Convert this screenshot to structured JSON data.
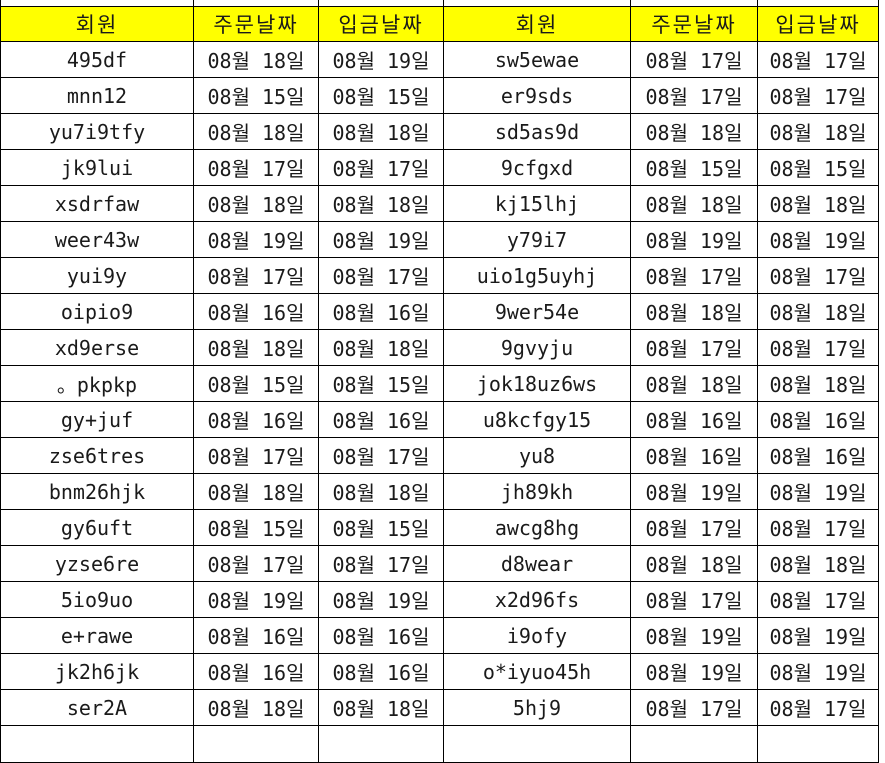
{
  "table": {
    "headers": [
      "회원",
      "주문날짜",
      "입금날짜",
      "회원",
      "주문날짜",
      "입금날짜"
    ],
    "rows": [
      [
        "495df",
        "08월 18일",
        "08월 19일",
        "sw5ewae",
        "08월 17일",
        "08월 17일"
      ],
      [
        "mnn12",
        "08월 15일",
        "08월 15일",
        "er9sds",
        "08월 17일",
        "08월 17일"
      ],
      [
        "yu7i9tfy",
        "08월 18일",
        "08월 18일",
        "sd5as9d",
        "08월 18일",
        "08월 18일"
      ],
      [
        "jk9lui",
        "08월 17일",
        "08월 17일",
        "9cfgxd",
        "08월 15일",
        "08월 15일"
      ],
      [
        "xsdrfaw",
        "08월 18일",
        "08월 18일",
        "kj15lhj",
        "08월 18일",
        "08월 18일"
      ],
      [
        "weer43w",
        "08월 19일",
        "08월 19일",
        "y79i7",
        "08월 19일",
        "08월 19일"
      ],
      [
        "yui9y",
        "08월 17일",
        "08월 17일",
        "uio1g5uyhj",
        "08월 17일",
        "08월 17일"
      ],
      [
        "oipio9",
        "08월 16일",
        "08월 16일",
        "9wer54e",
        "08월 18일",
        "08월 18일"
      ],
      [
        "xd9erse",
        "08월 18일",
        "08월 18일",
        "9gvyju",
        "08월 17일",
        "08월 17일"
      ],
      [
        "。pkpkp",
        "08월 15일",
        "08월 15일",
        "jok18uz6ws",
        "08월 18일",
        "08월 18일"
      ],
      [
        "gy+juf",
        "08월 16일",
        "08월 16일",
        "u8kcfgy15",
        "08월 16일",
        "08월 16일"
      ],
      [
        "zse6tres",
        "08월 17일",
        "08월 17일",
        "yu8",
        "08월 16일",
        "08월 16일"
      ],
      [
        "bnm26hjk",
        "08월 18일",
        "08월 18일",
        "jh89kh",
        "08월 19일",
        "08월 19일"
      ],
      [
        "gy6uft",
        "08월 15일",
        "08월 15일",
        "awcg8hg",
        "08월 17일",
        "08월 17일"
      ],
      [
        "yzse6re",
        "08월 17일",
        "08월 17일",
        "d8wear",
        "08월 18일",
        "08월 18일"
      ],
      [
        "5io9uo",
        "08월 19일",
        "08월 19일",
        "x2d96fs",
        "08월 17일",
        "08월 17일"
      ],
      [
        "e+rawe",
        "08월 16일",
        "08월 16일",
        "i9ofy",
        "08월 19일",
        "08월 19일"
      ],
      [
        "jk2h6jk",
        "08월 16일",
        "08월 16일",
        "o*iyuo45h",
        "08월 19일",
        "08월 19일"
      ],
      [
        "ser2A",
        "08월 18일",
        "08월 18일",
        "5hj9",
        "08월 17일",
        "08월 17일"
      ]
    ],
    "colors": {
      "header_bg": "#FFFF00",
      "border": "#000000",
      "text": "#1A1A1A",
      "background": "#FFFFFF"
    }
  }
}
